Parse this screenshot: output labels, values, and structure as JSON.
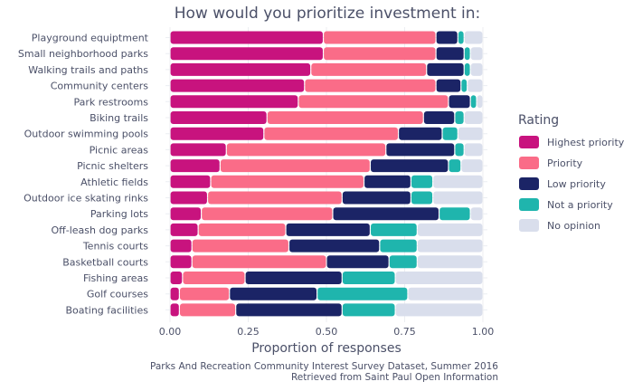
{
  "chart_data": {
    "type": "bar",
    "orientation": "horizontal",
    "stacked": true,
    "title": "How would you prioritize investment in:",
    "xlabel": "Proportion of responses",
    "xlim": [
      0,
      1
    ],
    "x_ticks": [
      "0.00",
      "0.25",
      "0.50",
      "0.75",
      "1.00"
    ],
    "legend_title": "Rating",
    "legend_position": "right",
    "caption": [
      "Parks And Recreation Community Interest Survey Dataset, Summer 2016",
      "Retrieved from Saint Paul Open Information"
    ],
    "categories": [
      "Playground equiptment",
      "Small neighborhood parks",
      "Walking trails and paths",
      "Community centers",
      "Park restrooms",
      "Biking trails",
      "Outdoor swimming pools",
      "Picnic areas",
      "Picnic shelters",
      "Athletic fields",
      "Outdoor ice skating rinks",
      "Parking lots",
      "Off-leash dog parks",
      "Tennis courts",
      "Basketball courts",
      "Fishing areas",
      "Golf courses",
      "Boating facilities"
    ],
    "series": [
      {
        "name": "Highest priority",
        "color": "#c8137e",
        "values": [
          0.49,
          0.49,
          0.45,
          0.43,
          0.41,
          0.31,
          0.3,
          0.18,
          0.16,
          0.13,
          0.12,
          0.1,
          0.09,
          0.07,
          0.07,
          0.04,
          0.03,
          0.03
        ]
      },
      {
        "name": "Priority",
        "color": "#fa6c88",
        "values": [
          0.36,
          0.36,
          0.37,
          0.42,
          0.48,
          0.5,
          0.43,
          0.51,
          0.48,
          0.49,
          0.43,
          0.42,
          0.28,
          0.31,
          0.43,
          0.2,
          0.16,
          0.18
        ]
      },
      {
        "name": "Low priority",
        "color": "#1b2466",
        "values": [
          0.07,
          0.09,
          0.12,
          0.08,
          0.07,
          0.1,
          0.14,
          0.22,
          0.25,
          0.15,
          0.22,
          0.34,
          0.27,
          0.29,
          0.2,
          0.31,
          0.28,
          0.34
        ]
      },
      {
        "name": "Not a priority",
        "color": "#1fb5ad",
        "values": [
          0.02,
          0.02,
          0.02,
          0.02,
          0.02,
          0.03,
          0.05,
          0.03,
          0.04,
          0.07,
          0.07,
          0.1,
          0.15,
          0.12,
          0.09,
          0.17,
          0.29,
          0.17
        ]
      },
      {
        "name": "No opinion",
        "color": "#d9deec",
        "values": [
          0.06,
          0.04,
          0.04,
          0.05,
          0.02,
          0.06,
          0.08,
          0.06,
          0.07,
          0.16,
          0.16,
          0.04,
          0.21,
          0.21,
          0.21,
          0.28,
          0.24,
          0.28
        ]
      }
    ]
  }
}
